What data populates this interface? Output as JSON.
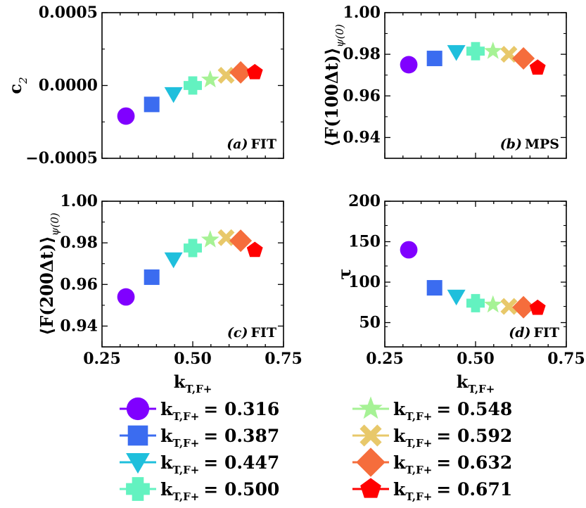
{
  "colors": [
    "#8000ff",
    "#3b6cf0",
    "#1fbfdc",
    "#63f2c0",
    "#a6f295",
    "#e8c86a",
    "#f56d3c",
    "#ff0000"
  ],
  "markers": [
    "circle",
    "square",
    "triangle-down",
    "plus",
    "star",
    "x",
    "diamond",
    "pentagon"
  ],
  "chart_data": [
    {
      "id": "a",
      "type": "scatter",
      "panel_label": "(a) FIT",
      "panel_letter": "(a)",
      "panel_name": "FIT",
      "ylabel": "c",
      "ylabel_sub": "2",
      "xlabel": "",
      "xlim": [
        0.25,
        0.75
      ],
      "ylim": [
        -0.0005,
        0.0005
      ],
      "yticks": [
        -0.0005,
        0.0,
        0.0005
      ],
      "ytick_labels": [
        "−0.0005",
        "0.0000",
        "0.0005"
      ],
      "xticks": [
        0.25,
        0.5,
        0.75
      ],
      "x": [
        0.316,
        0.387,
        0.447,
        0.5,
        0.548,
        0.592,
        0.632,
        0.671
      ],
      "y": [
        -0.00021,
        -0.00013,
        -6e-05,
        0.0,
        4e-05,
        7e-05,
        9e-05,
        9e-05
      ]
    },
    {
      "id": "b",
      "type": "scatter",
      "panel_label": "(b) MPS",
      "panel_letter": "(b)",
      "panel_name": "MPS",
      "ylabel": "⟨F(100Δt)⟩",
      "ylabel_sub": "ψ(0)",
      "xlabel": "",
      "xlim": [
        0.25,
        0.75
      ],
      "ylim": [
        0.93,
        1.0
      ],
      "yticks": [
        0.94,
        0.96,
        0.98,
        1.0
      ],
      "ytick_labels": [
        "0.94",
        "0.96",
        "0.98",
        "1.00"
      ],
      "xticks": [
        0.25,
        0.5,
        0.75
      ],
      "x": [
        0.316,
        0.387,
        0.447,
        0.5,
        0.548,
        0.592,
        0.632,
        0.671
      ],
      "y": [
        0.975,
        0.978,
        0.981,
        0.9815,
        0.9815,
        0.98,
        0.978,
        0.9735
      ]
    },
    {
      "id": "c",
      "type": "scatter",
      "panel_label": "(c) FIT",
      "panel_letter": "(c)",
      "panel_name": "FIT",
      "ylabel": "⟨F(200Δt)⟩",
      "ylabel_sub": "ψ(0)",
      "xlabel": "k",
      "xlabel_sub": "T,F+",
      "xlim": [
        0.25,
        0.75
      ],
      "ylim": [
        0.93,
        1.0
      ],
      "yticks": [
        0.94,
        0.96,
        0.98,
        1.0
      ],
      "ytick_labels": [
        "0.94",
        "0.96",
        "0.98",
        "1.00"
      ],
      "xticks": [
        0.25,
        0.5,
        0.75
      ],
      "xtick_labels": [
        "0.25",
        "0.50",
        "0.75"
      ],
      "x": [
        0.316,
        0.387,
        0.447,
        0.5,
        0.548,
        0.592,
        0.632,
        0.671
      ],
      "y": [
        0.954,
        0.9635,
        0.972,
        0.9775,
        0.9815,
        0.9825,
        0.981,
        0.9765
      ]
    },
    {
      "id": "d",
      "type": "scatter",
      "panel_label": "(d) FIT",
      "panel_letter": "(d)",
      "panel_name": "FIT",
      "ylabel": "τ",
      "ylabel_sub": "",
      "xlabel": "k",
      "xlabel_sub": "T,F+",
      "xlim": [
        0.25,
        0.75
      ],
      "ylim": [
        20,
        200
      ],
      "yticks": [
        50,
        100,
        150,
        200
      ],
      "ytick_labels": [
        "50",
        "100",
        "150",
        "200"
      ],
      "xticks": [
        0.25,
        0.5,
        0.75
      ],
      "xtick_labels": [
        "0.25",
        "0.50",
        "0.75"
      ],
      "x": [
        0.316,
        0.387,
        0.447,
        0.5,
        0.548,
        0.592,
        0.632,
        0.671
      ],
      "y": [
        140,
        93,
        82,
        74,
        72,
        70,
        69,
        68
      ]
    }
  ],
  "legend": {
    "items": [
      {
        "var": "k",
        "sub": "T,F+",
        "value": "= 0.316"
      },
      {
        "var": "k",
        "sub": "T,F+",
        "value": "= 0.387"
      },
      {
        "var": "k",
        "sub": "T,F+",
        "value": "= 0.447"
      },
      {
        "var": "k",
        "sub": "T,F+",
        "value": "= 0.500"
      },
      {
        "var": "k",
        "sub": "T,F+",
        "value": "= 0.548"
      },
      {
        "var": "k",
        "sub": "T,F+",
        "value": "= 0.592"
      },
      {
        "var": "k",
        "sub": "T,F+",
        "value": "= 0.632"
      },
      {
        "var": "k",
        "sub": "T,F+",
        "value": "= 0.671"
      }
    ]
  }
}
